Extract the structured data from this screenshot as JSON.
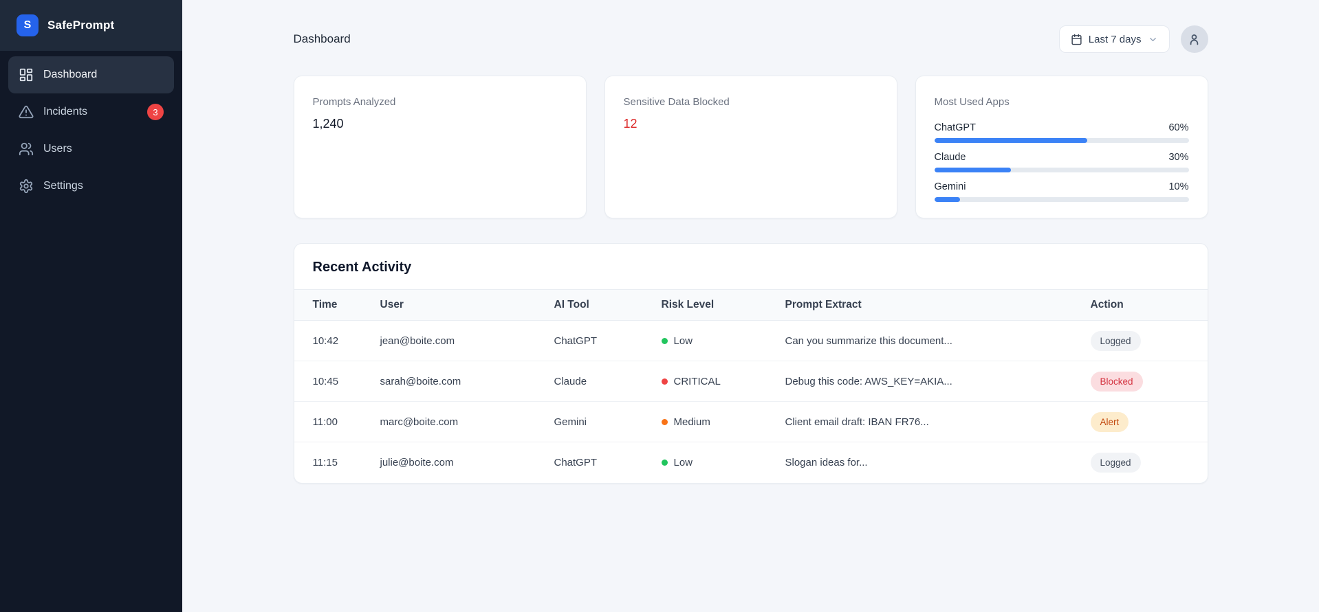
{
  "sidebar": {
    "brand": "SafePrompt",
    "logo_letter": "S",
    "items": [
      {
        "label": "Dashboard",
        "icon": "grid-icon",
        "active": true
      },
      {
        "label": "Incidents",
        "icon": "warning-icon",
        "badge": "3"
      },
      {
        "label": "Users",
        "icon": "users-icon"
      },
      {
        "label": "Settings",
        "icon": "gear-icon"
      }
    ]
  },
  "header": {
    "title": "Dashboard",
    "date_range": "Last 7 days"
  },
  "stats": {
    "cards": [
      {
        "title": "Prompts Analyzed",
        "value": "1,240"
      },
      {
        "title": "Sensitive Data Blocked",
        "value": "12"
      },
      {
        "title": "Most Used Apps"
      }
    ],
    "apps": [
      {
        "name": "ChatGPT",
        "percent": 60,
        "percent_label": "60%"
      },
      {
        "name": "Claude",
        "percent": 30,
        "percent_label": "30%"
      },
      {
        "name": "Gemini",
        "percent": 10,
        "percent_label": "10%"
      }
    ]
  },
  "activity": {
    "title": "Recent Activity",
    "columns": [
      "Time",
      "User",
      "AI Tool",
      "Risk Level",
      "Prompt Extract",
      "Action"
    ],
    "rows": [
      {
        "time": "10:42",
        "user": "jean@boite.com",
        "tool": "ChatGPT",
        "risk": "Low",
        "risk_variant": "low",
        "prompt": "Can you summarize this document...",
        "action": "Logged",
        "action_variant": "logged"
      },
      {
        "time": "10:45",
        "user": "sarah@boite.com",
        "tool": "Claude",
        "risk": "CRITICAL",
        "risk_variant": "critical",
        "prompt": "Debug this code: AWS_KEY=AKIA...",
        "action": "Blocked",
        "action_variant": "blocked"
      },
      {
        "time": "11:00",
        "user": "marc@boite.com",
        "tool": "Gemini",
        "risk": "Medium",
        "risk_variant": "medium",
        "prompt": "Client email draft: IBAN FR76...",
        "action": "Alert",
        "action_variant": "alert"
      },
      {
        "time": "11:15",
        "user": "julie@boite.com",
        "tool": "ChatGPT",
        "risk": "Low",
        "risk_variant": "low",
        "prompt": "Slogan ideas for...",
        "action": "Logged",
        "action_variant": "logged"
      }
    ]
  },
  "colors": {
    "accent_blue": "#3b82f6",
    "logo_blue": "#2563eb",
    "danger_red": "#dc2626",
    "badge_red": "#ef4444",
    "risk_low": "#22c55e",
    "risk_medium": "#f97316",
    "risk_critical": "#ef4444",
    "sidebar_bg": "#111827"
  }
}
